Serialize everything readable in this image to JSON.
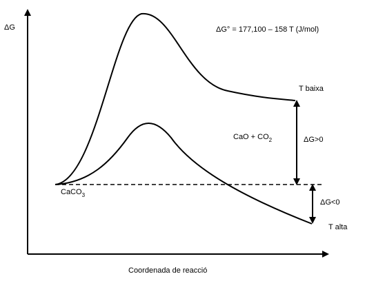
{
  "y_axis_label": "ΔG",
  "x_axis_label": "Coordenada de reacció",
  "equation": "ΔG° = 177,100 – 158 T (J/mol)",
  "reactant": {
    "base": "CaCO",
    "sub": "3"
  },
  "products": {
    "base": "CaO + CO",
    "sub": "2"
  },
  "curve_low_T_label": "T baixa",
  "curve_high_T_label": "T alta",
  "delta_pos_label": "ΔG>0",
  "delta_neg_label": "ΔG<0",
  "colors": {
    "line": "#000000",
    "background": "#ffffff"
  }
}
